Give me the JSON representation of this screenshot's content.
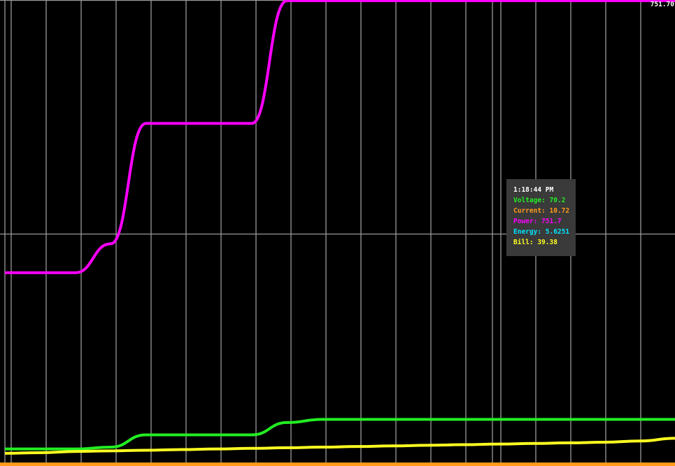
{
  "colors": {
    "background": "#000000",
    "grid": "#9a9a9a",
    "power": "#ff00ff",
    "voltage": "#22ee22",
    "current": "#ff9a1a",
    "energy": "#00e5ff",
    "bill": "#ffff22",
    "tooltip_bg": "#3a3a3a"
  },
  "tooltip": {
    "time": "1:18:44 PM",
    "voltage": "Voltage: 70.2",
    "current": "Current: 10.72",
    "power": "Power: 751.7",
    "energy": "Energy: 5.6251",
    "bill": "Bill: 39.38"
  },
  "chart_data": {
    "type": "line",
    "title": "",
    "xlabel": "",
    "ylabel": "",
    "ylim": [
      0,
      751.7
    ],
    "max_label": "751.70",
    "grid": true,
    "legend": "none",
    "x": [
      0,
      1,
      2,
      3,
      4,
      5,
      6,
      7,
      8,
      9,
      10,
      11,
      12,
      13,
      14,
      15,
      16,
      17,
      18,
      19
    ],
    "series": [
      {
        "name": "Power",
        "color_key": "power",
        "values": [
          309,
          309,
          309,
          356,
          552,
          552,
          552,
          552,
          751.7,
          751.7,
          751.7,
          751.7,
          751.7,
          751.7,
          751.7,
          751.7,
          751.7,
          751.7,
          751.7,
          751.7
        ]
      },
      {
        "name": "Voltage",
        "color_key": "voltage",
        "values": [
          22,
          22,
          22,
          25,
          45,
          45,
          45,
          45,
          65,
          70.2,
          70.2,
          70.2,
          70.2,
          70.2,
          70.2,
          70.2,
          70.2,
          70.2,
          70.2,
          70.2
        ]
      },
      {
        "name": "Bill",
        "color_key": "bill",
        "values": [
          15,
          16,
          18,
          19,
          20,
          21,
          22,
          23,
          24,
          25,
          26,
          27,
          28,
          29,
          30,
          31,
          32,
          33,
          35,
          39.38
        ]
      }
    ]
  }
}
